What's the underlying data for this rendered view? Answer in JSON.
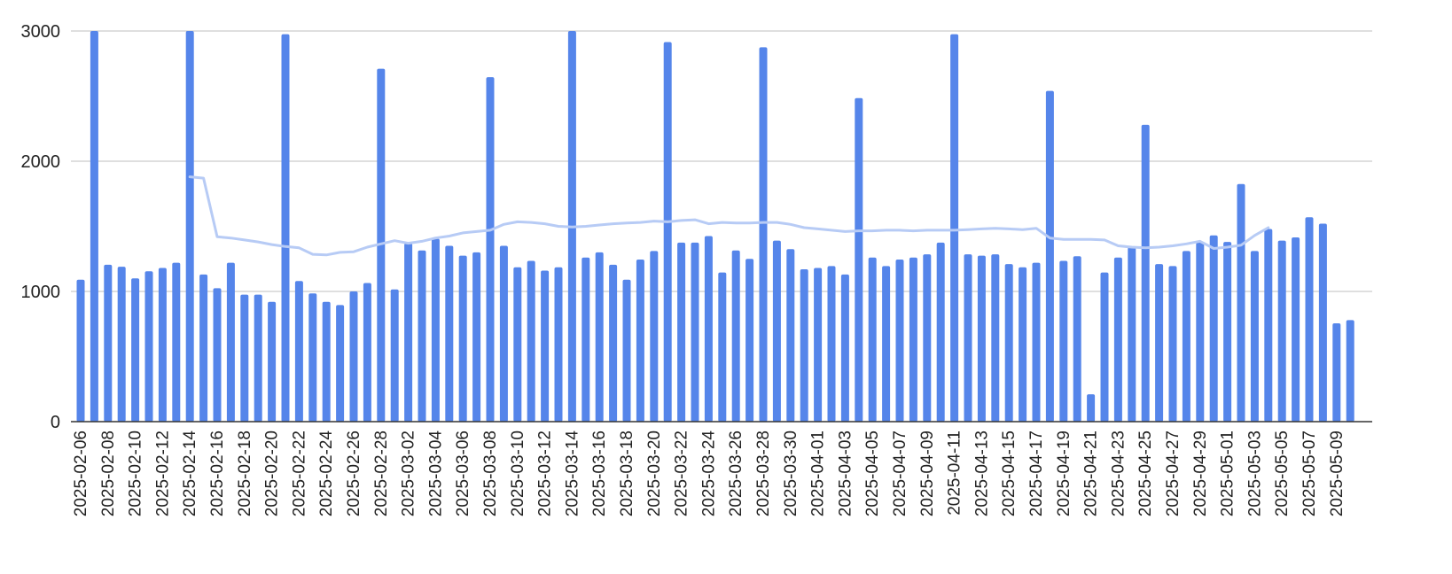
{
  "chart_data": {
    "type": "bar",
    "ylim": [
      0,
      3000
    ],
    "yticks": [
      0,
      1000,
      2000,
      3000
    ],
    "grid": true,
    "x_tick_labels": [
      "2025-02-06",
      "2025-02-08",
      "2025-02-10",
      "2025-02-12",
      "2025-02-14",
      "2025-02-16",
      "2025-02-18",
      "2025-02-20",
      "2025-02-22",
      "2025-02-24",
      "2025-02-26",
      "2025-02-28",
      "2025-03-02",
      "2025-03-04",
      "2025-03-06",
      "2025-03-08",
      "2025-03-10",
      "2025-03-12",
      "2025-03-14",
      "2025-03-16",
      "2025-03-18",
      "2025-03-20",
      "2025-03-22",
      "2025-03-24",
      "2025-03-26",
      "2025-03-28",
      "2025-03-30",
      "2025-04-01",
      "2025-04-03",
      "2025-04-05",
      "2025-04-07",
      "2025-04-09",
      "2025-04-11",
      "2025-04-13",
      "2025-04-15",
      "2025-04-17",
      "2025-04-19",
      "2025-04-21",
      "2025-04-23",
      "2025-04-25",
      "2025-04-27",
      "2025-04-29",
      "2025-05-01",
      "2025-05-03",
      "2025-05-05",
      "2025-05-07",
      "2025-05-09"
    ],
    "colors": {
      "bars": "#5585ea",
      "trend": "#b7cbf5",
      "grid": "#cccccc",
      "axis": "#333333"
    },
    "series": [
      {
        "type": "bar",
        "x": [
          "2025-02-06",
          "2025-02-07",
          "2025-02-08",
          "2025-02-09",
          "2025-02-10",
          "2025-02-11",
          "2025-02-12",
          "2025-02-13",
          "2025-02-14",
          "2025-02-15",
          "2025-02-16",
          "2025-02-17",
          "2025-02-18",
          "2025-02-19",
          "2025-02-20",
          "2025-02-21",
          "2025-02-22",
          "2025-02-23",
          "2025-02-24",
          "2025-02-25",
          "2025-02-26",
          "2025-02-27",
          "2025-02-28",
          "2025-03-01",
          "2025-03-02",
          "2025-03-03",
          "2025-03-04",
          "2025-03-05",
          "2025-03-06",
          "2025-03-07",
          "2025-03-08",
          "2025-03-09",
          "2025-03-10",
          "2025-03-11",
          "2025-03-12",
          "2025-03-13",
          "2025-03-14",
          "2025-03-15",
          "2025-03-16",
          "2025-03-17",
          "2025-03-18",
          "2025-03-19",
          "2025-03-20",
          "2025-03-21",
          "2025-03-22",
          "2025-03-23",
          "2025-03-24",
          "2025-03-25",
          "2025-03-26",
          "2025-03-27",
          "2025-03-28",
          "2025-03-29",
          "2025-03-30",
          "2025-03-31",
          "2025-04-01",
          "2025-04-02",
          "2025-04-03",
          "2025-04-04",
          "2025-04-05",
          "2025-04-06",
          "2025-04-07",
          "2025-04-08",
          "2025-04-09",
          "2025-04-10",
          "2025-04-11",
          "2025-04-12",
          "2025-04-13",
          "2025-04-14",
          "2025-04-15",
          "2025-04-16",
          "2025-04-17",
          "2025-04-18",
          "2025-04-19",
          "2025-04-20",
          "2025-04-21",
          "2025-04-22",
          "2025-04-23",
          "2025-04-24",
          "2025-04-25",
          "2025-04-26",
          "2025-04-27",
          "2025-04-28",
          "2025-04-29",
          "2025-04-30",
          "2025-05-01",
          "2025-05-02",
          "2025-05-03",
          "2025-05-04",
          "2025-05-05",
          "2025-05-06",
          "2025-05-07",
          "2025-05-08",
          "2025-05-09",
          "2025-05-10"
        ],
        "values": [
          1090,
          3000,
          1205,
          1190,
          1100,
          1155,
          1180,
          1220,
          3000,
          1130,
          1025,
          1220,
          975,
          975,
          920,
          2975,
          1080,
          985,
          920,
          895,
          1000,
          1065,
          2710,
          1015,
          1370,
          1315,
          1405,
          1350,
          1275,
          1300,
          2645,
          1350,
          1185,
          1235,
          1160,
          1185,
          3000,
          1260,
          1300,
          1205,
          1090,
          1245,
          1310,
          2915,
          1375,
          1375,
          1425,
          1145,
          1315,
          1250,
          2875,
          1390,
          1325,
          1170,
          1180,
          1195,
          1130,
          2485,
          1260,
          1195,
          1245,
          1260,
          1285,
          1375,
          2975,
          1285,
          1275,
          1285,
          1210,
          1185,
          1220,
          2540,
          1235,
          1270,
          210,
          1145,
          1260,
          1340,
          2280,
          1210,
          1195,
          1310,
          1375,
          1430,
          1380,
          1825,
          1310,
          1480,
          1390,
          1415,
          1570,
          1520,
          755,
          780
        ]
      },
      {
        "type": "line",
        "x": [
          "2025-02-14",
          "2025-02-15",
          "2025-02-16",
          "2025-02-17",
          "2025-02-18",
          "2025-02-19",
          "2025-02-20",
          "2025-02-21",
          "2025-02-22",
          "2025-02-23",
          "2025-02-24",
          "2025-02-25",
          "2025-02-26",
          "2025-02-27",
          "2025-02-28",
          "2025-03-01",
          "2025-03-02",
          "2025-03-03",
          "2025-03-04",
          "2025-03-05",
          "2025-03-06",
          "2025-03-07",
          "2025-03-08",
          "2025-03-09",
          "2025-03-10",
          "2025-03-11",
          "2025-03-12",
          "2025-03-13",
          "2025-03-14",
          "2025-03-15",
          "2025-03-16",
          "2025-03-17",
          "2025-03-18",
          "2025-03-19",
          "2025-03-20",
          "2025-03-21",
          "2025-03-22",
          "2025-03-23",
          "2025-03-24",
          "2025-03-25",
          "2025-03-26",
          "2025-03-27",
          "2025-03-28",
          "2025-03-29",
          "2025-03-30",
          "2025-03-31",
          "2025-04-01",
          "2025-04-02",
          "2025-04-03",
          "2025-04-04",
          "2025-04-05",
          "2025-04-06",
          "2025-04-07",
          "2025-04-08",
          "2025-04-09",
          "2025-04-10",
          "2025-04-11",
          "2025-04-12",
          "2025-04-13",
          "2025-04-14",
          "2025-04-15",
          "2025-04-16",
          "2025-04-17",
          "2025-04-18",
          "2025-04-19",
          "2025-04-20",
          "2025-04-21",
          "2025-04-22",
          "2025-04-23",
          "2025-04-24",
          "2025-04-25",
          "2025-04-26",
          "2025-04-27",
          "2025-04-28",
          "2025-04-29",
          "2025-04-30",
          "2025-05-01",
          "2025-05-02",
          "2025-05-03",
          "2025-05-04"
        ],
        "values": [
          1880,
          1870,
          1420,
          1410,
          1395,
          1380,
          1360,
          1345,
          1335,
          1285,
          1280,
          1300,
          1305,
          1340,
          1365,
          1390,
          1370,
          1385,
          1410,
          1425,
          1450,
          1460,
          1470,
          1515,
          1535,
          1530,
          1520,
          1500,
          1495,
          1500,
          1510,
          1520,
          1525,
          1530,
          1540,
          1535,
          1545,
          1550,
          1520,
          1530,
          1525,
          1525,
          1530,
          1530,
          1515,
          1490,
          1480,
          1470,
          1460,
          1465,
          1465,
          1470,
          1470,
          1465,
          1470,
          1470,
          1470,
          1475,
          1480,
          1485,
          1480,
          1475,
          1485,
          1410,
          1400,
          1400,
          1400,
          1395,
          1350,
          1340,
          1335,
          1340,
          1350,
          1365,
          1385,
          1330,
          1340,
          1355,
          1430,
          1490
        ]
      }
    ]
  }
}
